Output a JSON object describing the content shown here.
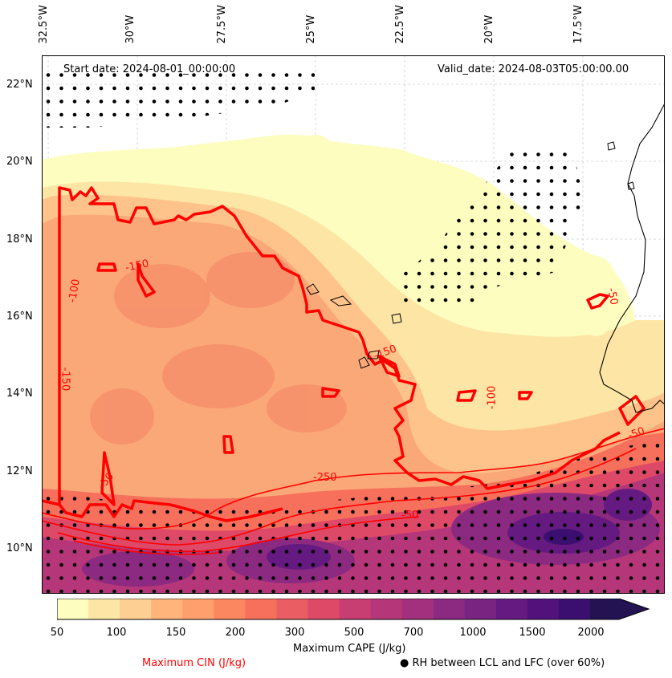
{
  "map": {
    "start_date": "Start date: 2024-08-01_00:00:00",
    "valid_date": "Valid_date: 2024-08-03T05:00:00.00",
    "lon_labels": [
      "32.5°W",
      "30°W",
      "27.5°W",
      "25°W",
      "22.5°W",
      "20°W",
      "17.5°W"
    ],
    "lat_labels": [
      "22°N",
      "20°N",
      "18°N",
      "16°N",
      "14°N",
      "12°N",
      "10°N"
    ],
    "contour_labels": [
      "-250",
      "-50",
      "-150",
      "-100",
      "-150",
      "-150",
      "-50",
      "-100",
      "-50",
      "-50"
    ]
  },
  "colorbar": {
    "title": "Maximum CAPE (J/kg)",
    "ticks": [
      "50",
      "100",
      "150",
      "200",
      "300",
      "500",
      "700",
      "1000",
      "1500",
      "2000"
    ],
    "colors": [
      "#fcfdbf",
      "#fde6a5",
      "#fecf92",
      "#feb47b",
      "#fe9f6d",
      "#fb8761",
      "#f7705c",
      "#ea5e63",
      "#de4968",
      "#c83e73",
      "#b63779",
      "#a3307e",
      "#8c2981",
      "#7a2482",
      "#641a80",
      "#51127c",
      "#3b0f70",
      "#241352"
    ]
  },
  "legend": {
    "cin_label": "Maximum CIN (J/kg)",
    "rh_label": "● RH between LCL and LFC (over 60%)",
    "cin_color": "#ff0000"
  }
}
